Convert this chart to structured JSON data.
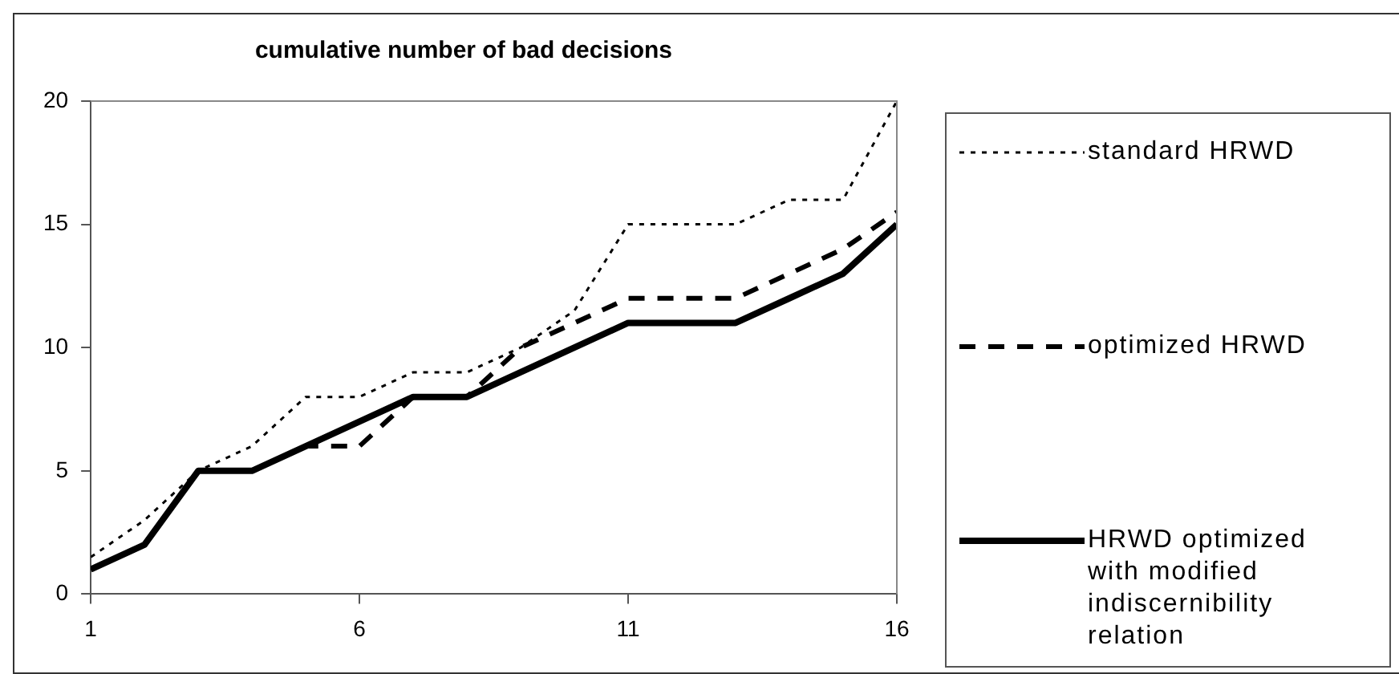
{
  "chart_data": {
    "type": "line",
    "title": "cumulative number of bad decisions",
    "x": [
      1,
      2,
      3,
      4,
      5,
      6,
      7,
      8,
      9,
      10,
      11,
      12,
      13,
      14,
      15,
      16
    ],
    "xlim": [
      1,
      16
    ],
    "xticks": [
      1,
      6,
      11,
      16
    ],
    "ylim": [
      0,
      20
    ],
    "yticks": [
      0,
      5,
      10,
      15,
      20
    ],
    "grid": false,
    "legend": "right",
    "marker": "none",
    "series": [
      {
        "name": "standard HRWD",
        "color": "#000000",
        "line_style": "dotted",
        "values": [
          1.5,
          3,
          5,
          6,
          8,
          8,
          9,
          9,
          10,
          11.5,
          15,
          15,
          15,
          16,
          16,
          20
        ]
      },
      {
        "name": "optimized HRWD",
        "color": "#000000",
        "line_style": "dashed",
        "values": [
          1,
          2,
          5,
          5,
          6,
          6,
          8,
          8,
          10,
          11,
          12,
          12,
          12,
          13,
          14,
          15.5
        ]
      },
      {
        "name": "HRWD optimized with modified indiscernibility relation",
        "color": "#000000",
        "line_style": "solid",
        "values": [
          1,
          2,
          5,
          5,
          6,
          7,
          8,
          8,
          9,
          10,
          11,
          11,
          11,
          12,
          13,
          15
        ]
      }
    ]
  }
}
